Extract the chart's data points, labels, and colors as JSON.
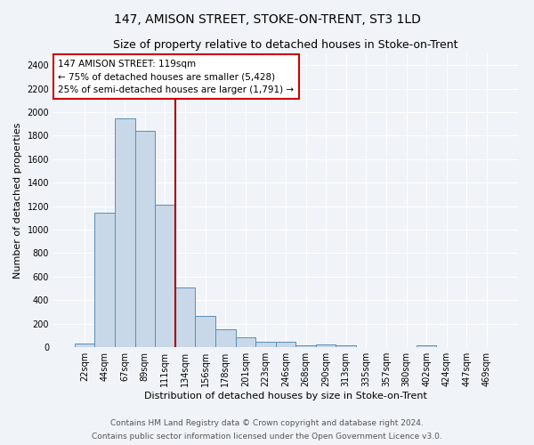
{
  "title": "147, AMISON STREET, STOKE-ON-TRENT, ST3 1LD",
  "subtitle": "Size of property relative to detached houses in Stoke-on-Trent",
  "xlabel": "Distribution of detached houses by size in Stoke-on-Trent",
  "ylabel": "Number of detached properties",
  "categories": [
    "22sqm",
    "44sqm",
    "67sqm",
    "89sqm",
    "111sqm",
    "134sqm",
    "156sqm",
    "178sqm",
    "201sqm",
    "223sqm",
    "246sqm",
    "268sqm",
    "290sqm",
    "313sqm",
    "335sqm",
    "357sqm",
    "380sqm",
    "402sqm",
    "424sqm",
    "447sqm",
    "469sqm"
  ],
  "values": [
    30,
    1145,
    1950,
    1840,
    1210,
    510,
    265,
    155,
    80,
    48,
    42,
    12,
    22,
    12,
    0,
    0,
    0,
    18,
    0,
    0,
    0
  ],
  "bar_color": "#c8d8e8",
  "bar_edge_color": "#5b8db8",
  "annotation_line1": "147 AMISON STREET: 119sqm",
  "annotation_line2": "← 75% of detached houses are smaller (5,428)",
  "annotation_line3": "25% of semi-detached houses are larger (1,791) →",
  "vline_x": 4.5,
  "vline_color": "#aa0000",
  "annotation_box_facecolor": "#ffffff",
  "annotation_box_edgecolor": "#cc0000",
  "ylim": [
    0,
    2500
  ],
  "yticks": [
    0,
    200,
    400,
    600,
    800,
    1000,
    1200,
    1400,
    1600,
    1800,
    2000,
    2200,
    2400
  ],
  "footer1": "Contains HM Land Registry data © Crown copyright and database right 2024.",
  "footer2": "Contains public sector information licensed under the Open Government Licence v3.0.",
  "bg_color": "#f0f4f8",
  "grid_color": "#ffffff",
  "title_fontsize": 10,
  "subtitle_fontsize": 9,
  "ylabel_fontsize": 8,
  "xlabel_fontsize": 8,
  "tick_fontsize": 7,
  "annot_fontsize": 7.5,
  "footer_fontsize": 6.5
}
